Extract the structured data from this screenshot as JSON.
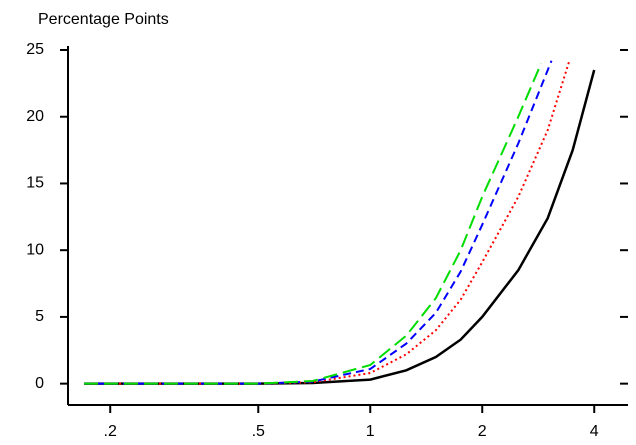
{
  "chart_data": {
    "type": "line",
    "y_label": "Percentage Points",
    "xscale": "log",
    "xlim": [
      0.154,
      4.93
    ],
    "ylim": [
      -1.6,
      25.3
    ],
    "xticks": [
      {
        "value": 0.2,
        "label": ".2"
      },
      {
        "value": 0.5,
        "label": ".5"
      },
      1,
      2,
      4
    ],
    "yticks": [
      0,
      5,
      10,
      15,
      20,
      25
    ],
    "series": [
      {
        "color": "#000000",
        "dash": "solid",
        "x": [
          0.17,
          0.5,
          0.7,
          1,
          1.25,
          1.5,
          1.75,
          2,
          2.5,
          3,
          3.5,
          4
        ],
        "values": [
          0,
          0,
          0.05,
          0.3,
          1,
          2,
          3.3,
          5,
          8.5,
          12.4,
          17.5,
          23.5
        ]
      },
      {
        "color": "#ff0000",
        "dash": "dotted",
        "x": [
          0.17,
          0.5,
          0.7,
          1,
          1.25,
          1.5,
          1.75,
          2,
          2.5,
          3,
          3.43
        ],
        "values": [
          0,
          0,
          0.1,
          0.8,
          2.2,
          4,
          6.3,
          9.1,
          14,
          19,
          24.2
        ]
      },
      {
        "color": "#0000ff",
        "dash": "dashed",
        "x": [
          0.17,
          0.5,
          0.7,
          1,
          1.25,
          1.5,
          1.75,
          2,
          2.5,
          3.07
        ],
        "values": [
          0,
          0,
          0.15,
          1.1,
          3,
          5.3,
          8.4,
          11.9,
          18,
          24.2
        ]
      },
      {
        "color": "#00dd00",
        "dash": "longdash",
        "x": [
          0.17,
          0.5,
          0.7,
          1,
          1.25,
          1.5,
          1.75,
          2,
          2.5,
          2.88
        ],
        "values": [
          0,
          0,
          0.2,
          1.4,
          3.6,
          6.4,
          10,
          14,
          20,
          24
        ]
      }
    ]
  }
}
